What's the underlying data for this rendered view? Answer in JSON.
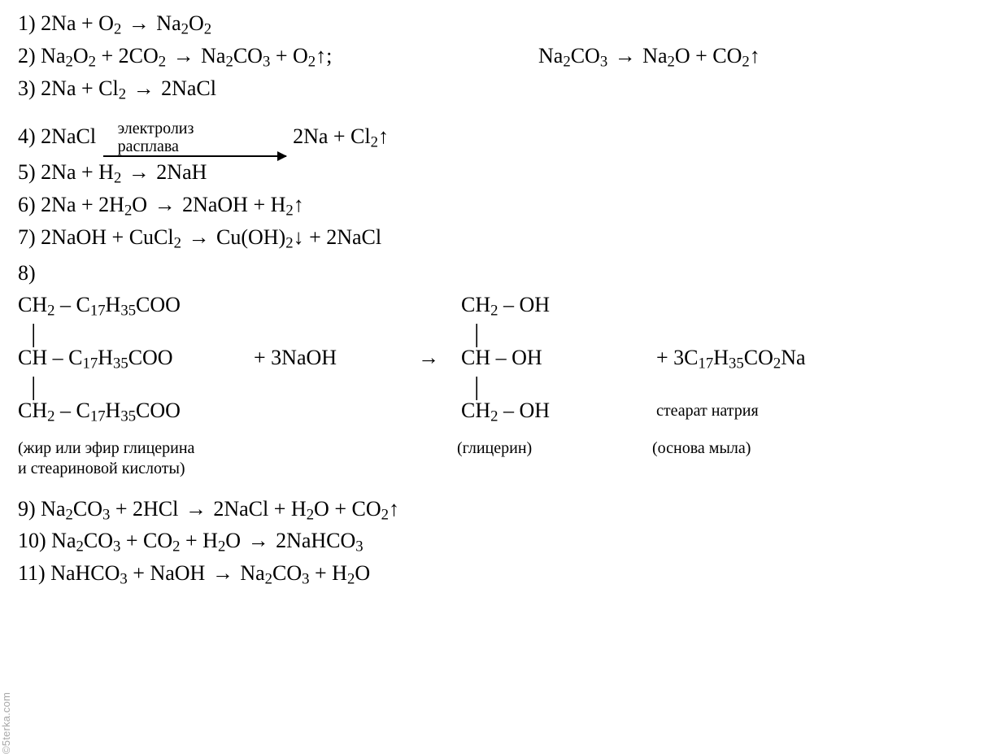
{
  "eq1": {
    "num": "1)",
    "body": "2Na + O₂ → Na₂O₂"
  },
  "eq2": {
    "num": "2)",
    "body": "Na₂O₂ + 2CO₂ → Na₂CO₃ + O₂↑;",
    "side": "Na₂CO₃ → Na₂O + CO₂↑"
  },
  "eq3": {
    "num": "3)",
    "body": "2Na + Cl₂ → 2NaCl"
  },
  "eq4": {
    "num": "4)",
    "left": "2NaCl",
    "arrow_label_line1": "электролиз",
    "arrow_label_line2": "расплава",
    "right": "2Na + Cl₂↑"
  },
  "eq5": {
    "num": "5)",
    "body": "2Na + H₂ → 2NaH"
  },
  "eq6": {
    "num": "6)",
    "body": "2Na + 2H₂O → 2NaOH + H₂↑"
  },
  "eq7": {
    "num": "7)",
    "body": "2NaOH + CuCl₂ → Cu(OH)₂↓ + 2NaCl"
  },
  "eq8": {
    "num": "8)",
    "react_top": "CH₂ – C₁₇H₃₅COO",
    "react_mid": "CH – C₁₇H₃₅COO",
    "react_bot": "CH₂ – C₁₇H₃₅COO",
    "reagent": "+ 3NaOH",
    "arrow": "→",
    "prod_top": "CH₂ – OH",
    "prod_mid": "CH – OH",
    "prod_bot": "CH₂ – OH",
    "prod2": "+ 3C₁₇H₃₅CO₂Na",
    "prod2_sub": "стеарат натрия",
    "cap_react": "(жир или эфир глицерина",
    "cap_react2": "и стеариновой кислоты)",
    "cap_gly": "(глицерин)",
    "cap_soap": "(основа мыла)",
    "bond": "|"
  },
  "eq9": {
    "num": "9)",
    "body": "Na₂CO₃ + 2HCl → 2NaCl + H₂O + CO₂↑"
  },
  "eq10": {
    "num": "10)",
    "body": "Na₂CO₃ + CO₂ + H₂O → 2NaHCO₃"
  },
  "eq11": {
    "num": "11)",
    "body": "NaHCO₃ + NaOH → Na₂CO₃ + H₂O"
  },
  "watermark": "©5terka.com"
}
